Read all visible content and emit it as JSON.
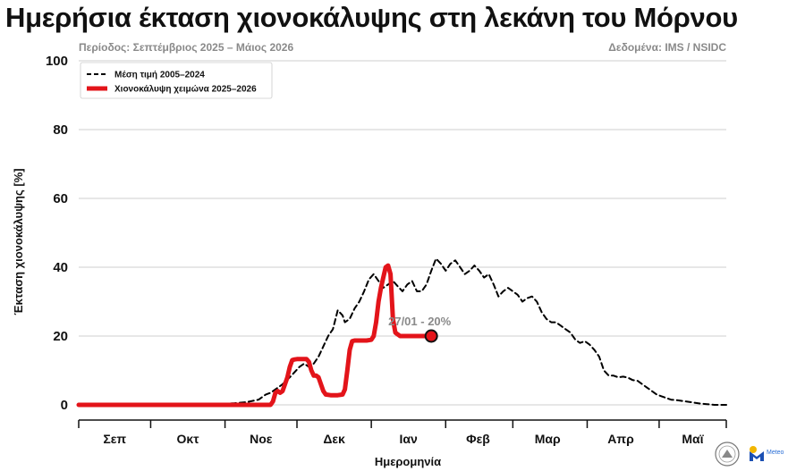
{
  "header": {
    "title": "Ημερήσια έκταση χιονοκάλυψης στη λεκάνη του Μόρνου",
    "period": "Περίοδος: Σεπτέμβριος 2025 – Μάιος 2026",
    "source": "Δεδομένα: IMS / NSIDC"
  },
  "chart_data": {
    "type": "line",
    "title": "Ημερήσια έκταση χιονοκάλυψης στη λεκάνη του Μόρνου",
    "xlabel": "Ημερομηνία",
    "ylabel": "Έκταση χιονοκάλυψης [%]",
    "ylim": [
      0,
      100
    ],
    "yticks": [
      0,
      20,
      40,
      60,
      80,
      100
    ],
    "xlim": [
      0,
      270
    ],
    "xlabels": [
      {
        "label": "Σεπ",
        "x": 15
      },
      {
        "label": "Οκτ",
        "x": 45.5
      },
      {
        "label": "Νοε",
        "x": 76
      },
      {
        "label": "Δεκ",
        "x": 106.5
      },
      {
        "label": "Ιαν",
        "x": 137.5
      },
      {
        "label": "Φεβ",
        "x": 166.5
      },
      {
        "label": "Μαρ",
        "x": 195.5
      },
      {
        "label": "Απρ",
        "x": 226
      },
      {
        "label": "Μαϊ",
        "x": 256
      }
    ],
    "xboundaries": [
      30,
      61,
      91,
      122,
      153,
      181,
      212,
      242
    ],
    "grid": true,
    "legend_position": "top-left",
    "series": [
      {
        "name": "Μέση τιμή 2005–2024",
        "style": "dashed",
        "color": "#000000",
        "points": [
          [
            0,
            0
          ],
          [
            40,
            0
          ],
          [
            60,
            0.3
          ],
          [
            65,
            0.5
          ],
          [
            70,
            0.8
          ],
          [
            75,
            1.5
          ],
          [
            78,
            3
          ],
          [
            80,
            3.5
          ],
          [
            83,
            5
          ],
          [
            85,
            6
          ],
          [
            88,
            8
          ],
          [
            90,
            9.5
          ],
          [
            92,
            11
          ],
          [
            94,
            12
          ],
          [
            96,
            11
          ],
          [
            98,
            12
          ],
          [
            100,
            14
          ],
          [
            102,
            17
          ],
          [
            104,
            20
          ],
          [
            106,
            22
          ],
          [
            108,
            27.5
          ],
          [
            110,
            26
          ],
          [
            111,
            24
          ],
          [
            113,
            25
          ],
          [
            115,
            28
          ],
          [
            117,
            30
          ],
          [
            119,
            33
          ],
          [
            121,
            36.5
          ],
          [
            123,
            38
          ],
          [
            125,
            36
          ],
          [
            127,
            34
          ],
          [
            129,
            35
          ],
          [
            131,
            36
          ],
          [
            133,
            34.5
          ],
          [
            135,
            33
          ],
          [
            137,
            35
          ],
          [
            139,
            36
          ],
          [
            141,
            33
          ],
          [
            143,
            33
          ],
          [
            145,
            35
          ],
          [
            147,
            39
          ],
          [
            149,
            42.5
          ],
          [
            151,
            41
          ],
          [
            153,
            39
          ],
          [
            155,
            41
          ],
          [
            157,
            42
          ],
          [
            159,
            40
          ],
          [
            161,
            38
          ],
          [
            163,
            39
          ],
          [
            165,
            40.5
          ],
          [
            167,
            39
          ],
          [
            169,
            37
          ],
          [
            171,
            38
          ],
          [
            173,
            35
          ],
          [
            175,
            31.5
          ],
          [
            177,
            33
          ],
          [
            179,
            34
          ],
          [
            181,
            33
          ],
          [
            183,
            32
          ],
          [
            185,
            30
          ],
          [
            187,
            31
          ],
          [
            189,
            31.5
          ],
          [
            191,
            30
          ],
          [
            193,
            27
          ],
          [
            195,
            25
          ],
          [
            197,
            24
          ],
          [
            199,
            24
          ],
          [
            201,
            23
          ],
          [
            203,
            22
          ],
          [
            205,
            21
          ],
          [
            207,
            19
          ],
          [
            209,
            18
          ],
          [
            211,
            18.5
          ],
          [
            213,
            17.5
          ],
          [
            215,
            16
          ],
          [
            217,
            14
          ],
          [
            219,
            10
          ],
          [
            221,
            8.5
          ],
          [
            223,
            8.5
          ],
          [
            225,
            8
          ],
          [
            227,
            8.2
          ],
          [
            229,
            7.9
          ],
          [
            231,
            7.2
          ],
          [
            233,
            7
          ],
          [
            235,
            6
          ],
          [
            237,
            5
          ],
          [
            239,
            4
          ],
          [
            241,
            3
          ],
          [
            243,
            2.5
          ],
          [
            245,
            2
          ],
          [
            247,
            1.5
          ],
          [
            249,
            1.4
          ],
          [
            251,
            1.2
          ],
          [
            253,
            1
          ],
          [
            256,
            0.7
          ],
          [
            259,
            0.4
          ],
          [
            262,
            0.2
          ],
          [
            265,
            0
          ],
          [
            270,
            0
          ]
        ]
      },
      {
        "name": "Χιονοκάλυψη χειμώνα 2025–2026",
        "style": "solid",
        "color": "#e3141a",
        "points": [
          [
            0,
            0
          ],
          [
            70,
            0
          ],
          [
            80,
            0
          ],
          [
            81,
            1
          ],
          [
            82,
            3.5
          ],
          [
            83,
            4
          ],
          [
            84,
            3.5
          ],
          [
            85,
            4
          ],
          [
            86,
            6
          ],
          [
            87,
            8
          ],
          [
            88,
            11
          ],
          [
            89,
            13
          ],
          [
            90,
            13.2
          ],
          [
            91,
            13.3
          ],
          [
            93,
            13.3
          ],
          [
            95,
            13.3
          ],
          [
            96,
            12.5
          ],
          [
            97,
            10
          ],
          [
            98,
            8.5
          ],
          [
            99,
            8.5
          ],
          [
            100,
            8
          ],
          [
            101,
            6
          ],
          [
            102,
            4
          ],
          [
            103,
            3
          ],
          [
            105,
            2.8
          ],
          [
            108,
            2.8
          ],
          [
            110,
            3
          ],
          [
            111,
            4.5
          ],
          [
            112,
            10
          ],
          [
            113,
            16
          ],
          [
            114,
            18.5
          ],
          [
            115,
            18.7
          ],
          [
            120,
            18.7
          ],
          [
            122,
            18.9
          ],
          [
            123,
            20
          ],
          [
            124,
            24
          ],
          [
            125,
            30
          ],
          [
            126,
            34
          ],
          [
            127,
            37
          ],
          [
            128,
            40
          ],
          [
            129,
            40.5
          ],
          [
            130,
            38
          ],
          [
            131,
            25
          ],
          [
            132,
            21
          ],
          [
            133,
            20.5
          ],
          [
            134,
            20
          ],
          [
            135,
            20
          ],
          [
            136,
            20
          ],
          [
            137,
            20
          ],
          [
            138,
            20
          ],
          [
            139,
            20
          ],
          [
            140,
            20
          ],
          [
            141,
            20
          ],
          [
            142,
            20
          ],
          [
            143,
            20
          ],
          [
            144,
            20
          ],
          [
            145,
            20
          ],
          [
            146,
            20
          ],
          [
            147,
            20
          ]
        ]
      }
    ],
    "annotation": {
      "text": "27/01 - 20%",
      "x": 147,
      "y": 20
    }
  },
  "logos": {
    "meteo_text": "Meteo"
  }
}
